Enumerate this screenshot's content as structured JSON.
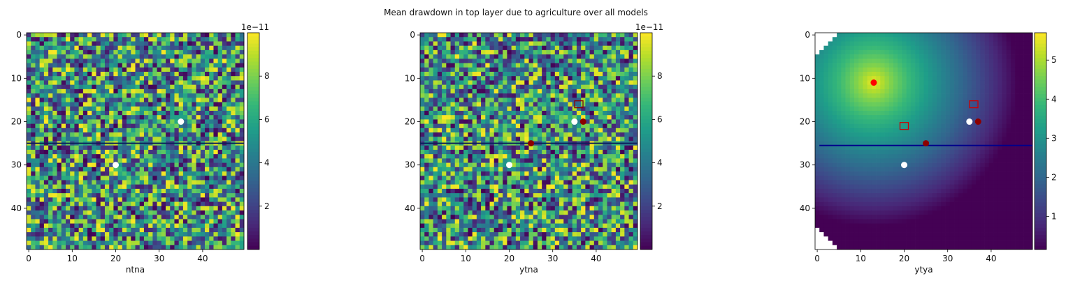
{
  "title": "Mean drawdown in top layer due to agriculture over all models",
  "colormap": [
    "#440154",
    "#482878",
    "#3e4989",
    "#31688e",
    "#26828e",
    "#1f9e89",
    "#35b779",
    "#6ece58",
    "#b5de2b",
    "#fde725"
  ],
  "chart_data": [
    {
      "type": "heatmap",
      "xlabel": "ntna",
      "grid_size": 50,
      "x_ticks": [
        0,
        10,
        20,
        30,
        40
      ],
      "y_ticks": [
        0,
        10,
        20,
        30,
        40
      ],
      "field": "random uniform noise",
      "vmin": 0.0,
      "vmax": 1.0,
      "colorbar": {
        "ticks": [
          2,
          4,
          6,
          8
        ],
        "multiplier": "1e−11"
      },
      "hline_y": 25,
      "hline_color": "#0b1e5b",
      "markers": [
        {
          "x": 35,
          "y": 20,
          "shape": "circle",
          "color": "#ffffff"
        },
        {
          "x": 20,
          "y": 30,
          "shape": "circle",
          "color": "#ffffff"
        }
      ]
    },
    {
      "type": "heatmap",
      "xlabel": "ytna",
      "grid_size": 50,
      "x_ticks": [
        0,
        10,
        20,
        30,
        40
      ],
      "y_ticks": [
        0,
        10,
        20,
        30,
        40
      ],
      "field": "random uniform noise",
      "vmin": 0.0,
      "vmax": 1.0,
      "colorbar": {
        "ticks": [
          2,
          4,
          6,
          8
        ],
        "multiplier": "1e−11"
      },
      "hline_y": 25,
      "hline_color": "#0b1e5b",
      "markers": [
        {
          "x": 35,
          "y": 20,
          "shape": "circle",
          "color": "#ffffff"
        },
        {
          "x": 20,
          "y": 30,
          "shape": "circle",
          "color": "#ffffff"
        },
        {
          "x": 37,
          "y": 20,
          "shape": "circle",
          "color": "#8b0000"
        },
        {
          "x": 25,
          "y": 25,
          "shape": "circle",
          "color": "#8b0000"
        },
        {
          "x": 36,
          "y": 16,
          "shape": "square",
          "color": "#8b0000"
        }
      ]
    },
    {
      "type": "heatmap",
      "xlabel": "ytya",
      "grid_size": 50,
      "x_ticks": [
        0,
        10,
        20,
        30,
        40
      ],
      "y_ticks": [
        0,
        10,
        20,
        30,
        40
      ],
      "field": "drawdown cone",
      "vmin": 0.0,
      "vmax": 5.7,
      "well": {
        "x": 13,
        "y": 11
      },
      "colorbar": {
        "ticks": [
          1,
          2,
          3,
          4,
          5
        ],
        "multiplier": ""
      },
      "hline_y": 25.5,
      "hline_color": "#00008b",
      "markers": [
        {
          "x": 13,
          "y": 11,
          "shape": "circle",
          "color": "#ff0000"
        },
        {
          "x": 35,
          "y": 20,
          "shape": "circle",
          "color": "#ffffff"
        },
        {
          "x": 20,
          "y": 30,
          "shape": "circle",
          "color": "#ffffff"
        },
        {
          "x": 37,
          "y": 20,
          "shape": "circle",
          "color": "#8b0000"
        },
        {
          "x": 25,
          "y": 25,
          "shape": "circle",
          "color": "#8b0000"
        },
        {
          "x": 36,
          "y": 16,
          "shape": "square",
          "color": "#cc0000"
        },
        {
          "x": 20,
          "y": 21,
          "shape": "square",
          "color": "#cc0000"
        }
      ]
    }
  ]
}
